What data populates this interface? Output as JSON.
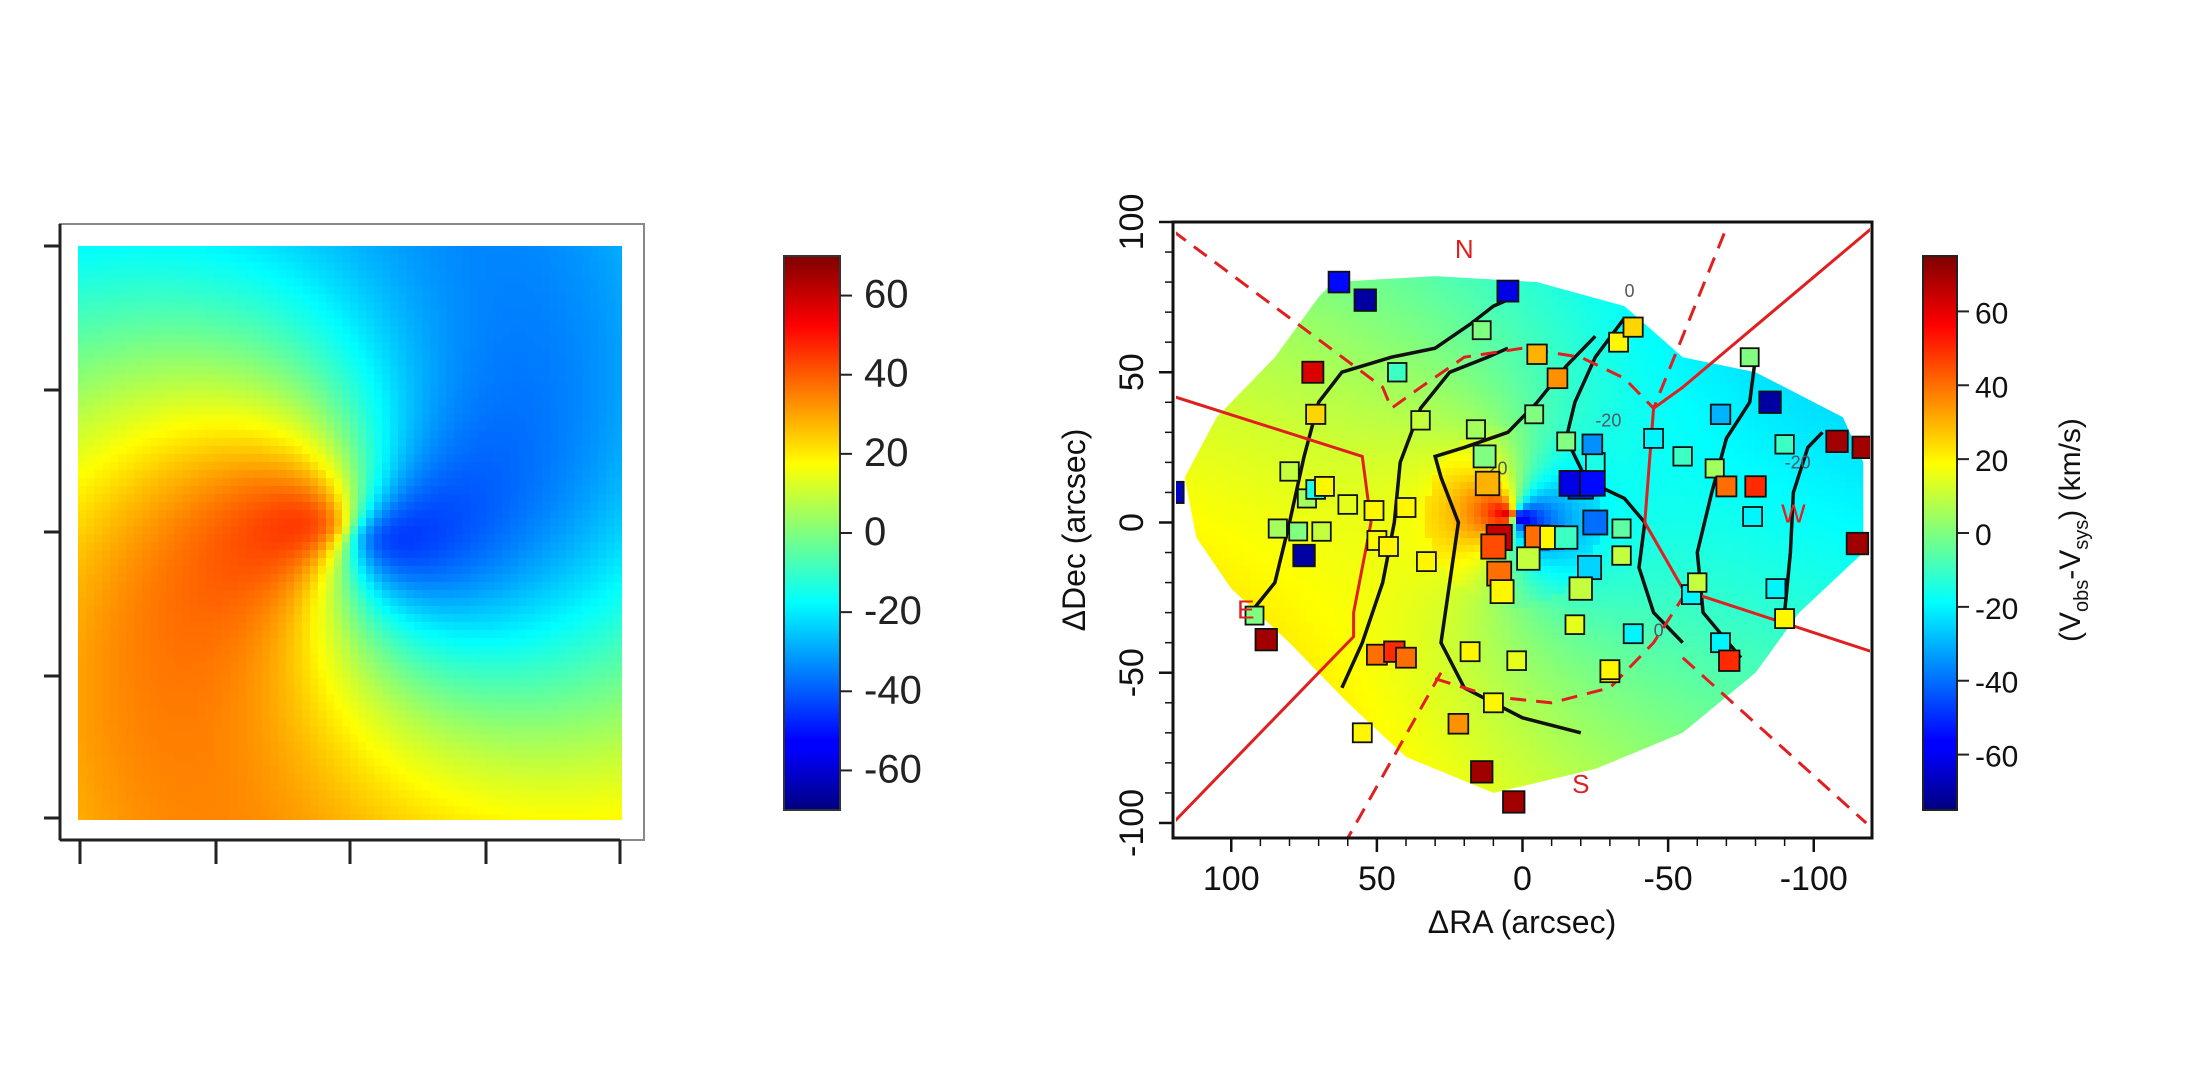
{
  "chart_data": [
    {
      "type": "heatmap",
      "panel": "left",
      "title": "",
      "xlabel": "",
      "ylabel": "",
      "description_values": "rotating velocity field: positive (red) left of center, negative (blue) right of center, spiral arms",
      "vmin": -70,
      "vmax": 70,
      "colorbar": {
        "ticks": [
          60,
          40,
          20,
          0,
          -20,
          -40,
          -60
        ],
        "tick_labels": [
          "60",
          "40",
          "20",
          "0",
          "-20",
          "-40",
          "-60"
        ]
      }
    },
    {
      "type": "heatmap",
      "panel": "right",
      "title": "",
      "xlabel": "ΔRA (arcsec)",
      "ylabel": "ΔDec (arcsec)",
      "xlim": [
        120,
        -120
      ],
      "ylim": [
        -105,
        100
      ],
      "x_ticks": [
        100,
        50,
        0,
        -50,
        -100
      ],
      "x_tick_labels": [
        "100",
        "50",
        "0",
        "-50",
        "-100"
      ],
      "y_ticks": [
        100,
        50,
        0,
        -50,
        -100
      ],
      "y_tick_labels": [
        "100",
        "50",
        "0",
        "-50",
        "-100"
      ],
      "vmin": -75,
      "vmax": 75,
      "colorbar": {
        "label_parts": [
          "(V",
          "obs",
          "-V",
          "sys",
          ") (km/s)"
        ],
        "ticks": [
          60,
          40,
          20,
          0,
          -20,
          -40,
          -60
        ],
        "tick_labels": [
          "60",
          "40",
          "20",
          "0",
          "-20",
          "-40",
          "-60"
        ]
      },
      "annotations": [
        {
          "text": "N",
          "x": 20,
          "y": 88
        },
        {
          "text": "E",
          "x": 95,
          "y": -32
        },
        {
          "text": "S",
          "x": -20,
          "y": -90
        },
        {
          "text": "W",
          "x": -93,
          "y": 0
        }
      ],
      "contour_labels": [
        {
          "text": "20",
          "x": 12,
          "y": 16
        },
        {
          "text": "-20",
          "x": -25,
          "y": 32
        },
        {
          "text": "-20",
          "x": -90,
          "y": 18
        },
        {
          "text": "0",
          "x": -45,
          "y": -38
        },
        {
          "text": "0",
          "x": -35,
          "y": 75
        }
      ],
      "points": [
        {
          "x": 63,
          "y": 80,
          "v": -55
        },
        {
          "x": 54,
          "y": 74,
          "v": -70
        },
        {
          "x": 5,
          "y": 77,
          "v": -60
        },
        {
          "x": 72,
          "y": 50,
          "v": 62
        },
        {
          "x": 71,
          "y": 36,
          "v": 25
        },
        {
          "x": 43,
          "y": 50,
          "v": -10
        },
        {
          "x": 14,
          "y": 64,
          "v": 0
        },
        {
          "x": -5,
          "y": 56,
          "v": 30
        },
        {
          "x": -33,
          "y": 60,
          "v": 20
        },
        {
          "x": -38,
          "y": 65,
          "v": 25
        },
        {
          "x": -12,
          "y": 48,
          "v": 35
        },
        {
          "x": 35,
          "y": 34,
          "v": 10
        },
        {
          "x": 16,
          "y": 31,
          "v": 5
        },
        {
          "x": 13,
          "y": 22,
          "v": 0
        },
        {
          "x": -4,
          "y": 36,
          "v": 0
        },
        {
          "x": -15,
          "y": 27,
          "v": 0
        },
        {
          "x": -25,
          "y": 20,
          "v": -15
        },
        {
          "x": -45,
          "y": 28,
          "v": -20
        },
        {
          "x": -55,
          "y": 22,
          "v": -10
        },
        {
          "x": -66,
          "y": 18,
          "v": 5
        },
        {
          "x": -70,
          "y": 12,
          "v": 40
        },
        {
          "x": -80,
          "y": 12,
          "v": 50
        },
        {
          "x": -85,
          "y": 40,
          "v": -70
        },
        {
          "x": -90,
          "y": 26,
          "v": -10
        },
        {
          "x": -108,
          "y": 27,
          "v": 70
        },
        {
          "x": -117,
          "y": 25,
          "v": 70
        },
        {
          "x": -115,
          "y": -7,
          "v": 70
        },
        {
          "x": -68,
          "y": 36,
          "v": -30
        },
        {
          "x": -78,
          "y": 55,
          "v": 0
        },
        {
          "x": 120,
          "y": 10,
          "v": -65
        },
        {
          "x": 80,
          "y": 17,
          "v": 10
        },
        {
          "x": 74,
          "y": 8,
          "v": 5
        },
        {
          "x": 71,
          "y": 11,
          "v": -15
        },
        {
          "x": 84,
          "y": -2,
          "v": 5
        },
        {
          "x": 77,
          "y": -3,
          "v": 0
        },
        {
          "x": 69,
          "y": -3,
          "v": 10
        },
        {
          "x": 75,
          "y": -11,
          "v": -70
        },
        {
          "x": 68,
          "y": 12,
          "v": 20
        },
        {
          "x": 60,
          "y": 6,
          "v": 15
        },
        {
          "x": 51,
          "y": 4,
          "v": 20
        },
        {
          "x": 40,
          "y": 5,
          "v": 20
        },
        {
          "x": 50,
          "y": -6,
          "v": 20
        },
        {
          "x": 46,
          "y": -8,
          "v": 20
        },
        {
          "x": 33,
          "y": -13,
          "v": 20
        },
        {
          "x": 12,
          "y": 13,
          "v": 30
        },
        {
          "x": -5,
          "y": -5,
          "v": 40
        },
        {
          "x": 8,
          "y": -5,
          "v": 65
        },
        {
          "x": 8,
          "y": -17,
          "v": 40
        },
        {
          "x": 10,
          "y": -8,
          "v": 45
        },
        {
          "x": 7,
          "y": -23,
          "v": 20
        },
        {
          "x": -2,
          "y": -12,
          "v": 10
        },
        {
          "x": -10,
          "y": -5,
          "v": 20
        },
        {
          "x": -20,
          "y": 12,
          "v": -50
        },
        {
          "x": -17,
          "y": 13,
          "v": -60
        },
        {
          "x": -24,
          "y": 13,
          "v": -55
        },
        {
          "x": -24,
          "y": 26,
          "v": -35
        },
        {
          "x": -25,
          "y": 0,
          "v": -40
        },
        {
          "x": -23,
          "y": -15,
          "v": -25
        },
        {
          "x": -34,
          "y": -2,
          "v": -5
        },
        {
          "x": -34,
          "y": -11,
          "v": 10
        },
        {
          "x": -15,
          "y": -5,
          "v": -10
        },
        {
          "x": -20,
          "y": -22,
          "v": 10
        },
        {
          "x": -38,
          "y": -37,
          "v": -20
        },
        {
          "x": -18,
          "y": -34,
          "v": 15
        },
        {
          "x": -30,
          "y": -50,
          "v": 20
        },
        {
          "x": -58,
          "y": -24,
          "v": -20
        },
        {
          "x": -60,
          "y": -20,
          "v": 10
        },
        {
          "x": -79,
          "y": 2,
          "v": -20
        },
        {
          "x": -87,
          "y": -22,
          "v": -20
        },
        {
          "x": -90,
          "y": -32,
          "v": 20
        },
        {
          "x": -68,
          "y": -40,
          "v": -20
        },
        {
          "x": -71,
          "y": -46,
          "v": 50
        },
        {
          "x": 92,
          "y": -31,
          "v": 0
        },
        {
          "x": 88,
          "y": -39,
          "v": 70
        },
        {
          "x": 50,
          "y": -44,
          "v": 40
        },
        {
          "x": 44,
          "y": -43,
          "v": 50
        },
        {
          "x": 40,
          "y": -45,
          "v": 40
        },
        {
          "x": 55,
          "y": -70,
          "v": 20
        },
        {
          "x": 22,
          "y": -67,
          "v": 35
        },
        {
          "x": 18,
          "y": -43,
          "v": 20
        },
        {
          "x": 2,
          "y": -46,
          "v": 15
        },
        {
          "x": 10,
          "y": -60,
          "v": 20
        },
        {
          "x": -30,
          "y": -49,
          "v": 20
        },
        {
          "x": 14,
          "y": -83,
          "v": 70
        },
        {
          "x": 3,
          "y": -93,
          "v": 70
        }
      ]
    }
  ]
}
